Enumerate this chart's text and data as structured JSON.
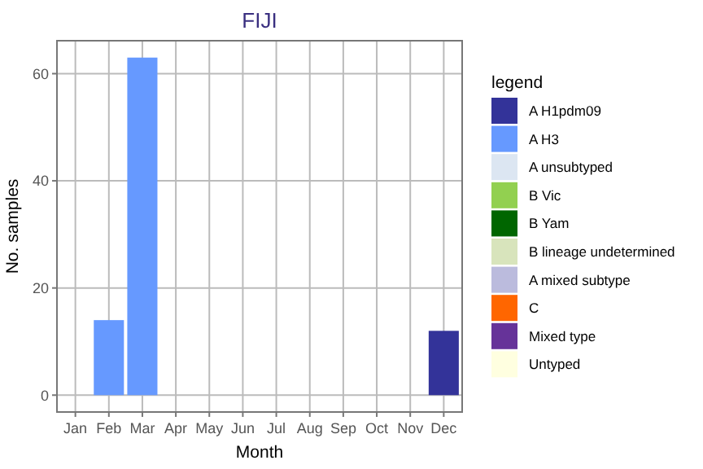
{
  "chart_data": {
    "type": "bar",
    "title": "FIJI",
    "xlabel": "Month",
    "ylabel": "No. samples",
    "legend_title": "legend",
    "categories": [
      "Jan",
      "Feb",
      "Mar",
      "Apr",
      "May",
      "Jun",
      "Jul",
      "Aug",
      "Sep",
      "Oct",
      "Nov",
      "Dec"
    ],
    "series": [
      {
        "name": "A H1pdm09",
        "color": "#333399",
        "values": [
          null,
          null,
          null,
          null,
          null,
          null,
          null,
          null,
          null,
          null,
          null,
          12
        ]
      },
      {
        "name": "A H3",
        "color": "#6699ff",
        "values": [
          null,
          14,
          63,
          null,
          null,
          null,
          null,
          null,
          null,
          null,
          null,
          null
        ]
      },
      {
        "name": "A unsubtyped",
        "color": "#dce6f2",
        "values": [
          null,
          null,
          null,
          null,
          null,
          null,
          null,
          null,
          null,
          null,
          null,
          null
        ]
      },
      {
        "name": "B Vic",
        "color": "#92d050",
        "values": [
          null,
          null,
          null,
          null,
          null,
          null,
          null,
          null,
          null,
          null,
          null,
          null
        ]
      },
      {
        "name": "B Yam",
        "color": "#006600",
        "values": [
          null,
          null,
          null,
          null,
          null,
          null,
          null,
          null,
          null,
          null,
          null,
          null
        ]
      },
      {
        "name": "B lineage undetermined",
        "color": "#d8e4bc",
        "values": [
          null,
          null,
          null,
          null,
          null,
          null,
          null,
          null,
          null,
          null,
          null,
          null
        ]
      },
      {
        "name": "A mixed subtype",
        "color": "#bbbbdd",
        "values": [
          null,
          null,
          null,
          null,
          null,
          null,
          null,
          null,
          null,
          null,
          null,
          null
        ]
      },
      {
        "name": "C",
        "color": "#ff6600",
        "values": [
          null,
          null,
          null,
          null,
          null,
          null,
          null,
          null,
          null,
          null,
          null,
          null
        ]
      },
      {
        "name": "Mixed type",
        "color": "#663399",
        "values": [
          null,
          null,
          null,
          null,
          null,
          null,
          null,
          null,
          null,
          null,
          null,
          null
        ]
      },
      {
        "name": "Untyped",
        "color": "#ffffe0",
        "values": [
          null,
          null,
          null,
          null,
          null,
          null,
          null,
          null,
          null,
          null,
          null,
          null
        ]
      }
    ],
    "ylim": [
      -3.15,
      66.15
    ],
    "yticks": [
      0,
      20,
      40,
      60
    ],
    "grid": true,
    "legend": "right"
  }
}
